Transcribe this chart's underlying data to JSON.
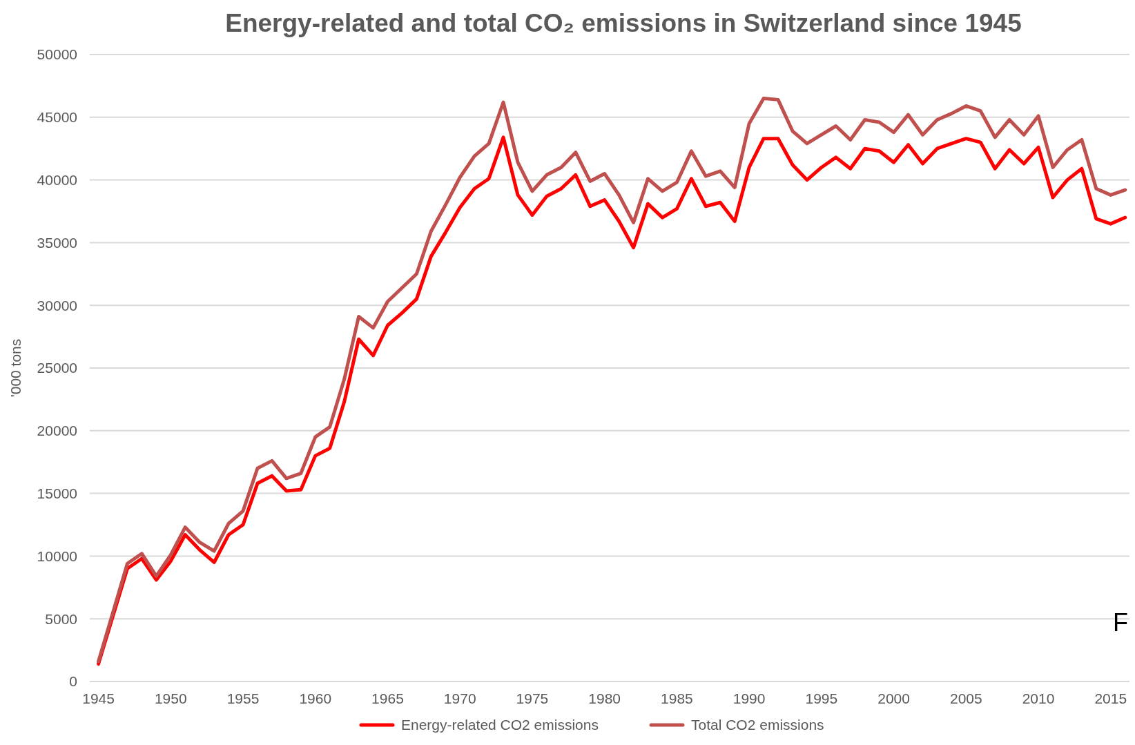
{
  "chart_data": {
    "type": "line",
    "title": "Energy-related and total CO₂ emissions in Switzerland since 1945",
    "ylabel": "'000 tons",
    "x": [
      1945,
      1946,
      1947,
      1948,
      1949,
      1950,
      1951,
      1952,
      1953,
      1954,
      1955,
      1956,
      1957,
      1958,
      1959,
      1960,
      1961,
      1962,
      1963,
      1964,
      1965,
      1966,
      1967,
      1968,
      1969,
      1970,
      1971,
      1972,
      1973,
      1974,
      1975,
      1976,
      1977,
      1978,
      1979,
      1980,
      1981,
      1982,
      1983,
      1984,
      1985,
      1986,
      1987,
      1988,
      1989,
      1990,
      1991,
      1992,
      1993,
      1994,
      1995,
      1996,
      1997,
      1998,
      1999,
      2000,
      2001,
      2002,
      2003,
      2004,
      2005,
      2006,
      2007,
      2008,
      2009,
      2010,
      2011,
      2012,
      2013,
      2014,
      2015,
      2016
    ],
    "series": [
      {
        "name": "Energy-related CO2 emissions",
        "color": "#ff0000",
        "values": [
          1400,
          5200,
          9000,
          9800,
          8100,
          9600,
          11700,
          10500,
          9500,
          11700,
          12500,
          15800,
          16400,
          15200,
          15300,
          18000,
          18600,
          22300,
          27300,
          26000,
          28400,
          29400,
          30500,
          33900,
          35800,
          37800,
          39300,
          40100,
          43400,
          38800,
          37200,
          38700,
          39300,
          40400,
          37900,
          38400,
          36700,
          34600,
          38100,
          37000,
          37700,
          40100,
          37900,
          38200,
          36700,
          41000,
          43300,
          43300,
          41200,
          40000,
          41000,
          41800,
          40900,
          42500,
          42300,
          41400,
          42800,
          41300,
          42500,
          42900,
          43300,
          43000,
          40900,
          42400,
          41300,
          42600,
          38600,
          40000,
          40900,
          36900,
          36500,
          37000
        ]
      },
      {
        "name": "Total CO2 emissions",
        "color": "#c0504d",
        "values": [
          1600,
          5500,
          9400,
          10200,
          8400,
          10100,
          12300,
          11100,
          10400,
          12600,
          13600,
          17000,
          17600,
          16200,
          16600,
          19500,
          20300,
          24100,
          29100,
          28200,
          30300,
          31400,
          32500,
          35900,
          38000,
          40200,
          41900,
          42900,
          46200,
          41400,
          39100,
          40400,
          41000,
          42200,
          39900,
          40500,
          38800,
          36600,
          40100,
          39100,
          39800,
          42300,
          40300,
          40700,
          39400,
          44500,
          46500,
          46400,
          43900,
          42900,
          43600,
          44300,
          43200,
          44800,
          44600,
          43800,
          45200,
          43600,
          44800,
          45300,
          45900,
          45500,
          43400,
          44800,
          43600,
          45100,
          41000,
          42400,
          43200,
          39300,
          38800,
          39200
        ]
      }
    ],
    "xlim": [
      1944.4,
      2016.3
    ],
    "xticks": [
      1945,
      1950,
      1955,
      1960,
      1965,
      1970,
      1975,
      1980,
      1985,
      1990,
      1995,
      2000,
      2005,
      2010,
      2015
    ],
    "ylim": [
      0,
      50000
    ],
    "yticks": [
      0,
      5000,
      10000,
      15000,
      20000,
      25000,
      30000,
      35000,
      40000,
      45000,
      50000
    ],
    "grid": "y",
    "legend": "bottom",
    "marker": "none",
    "line_style": "solid",
    "annotations": [
      "F"
    ]
  }
}
